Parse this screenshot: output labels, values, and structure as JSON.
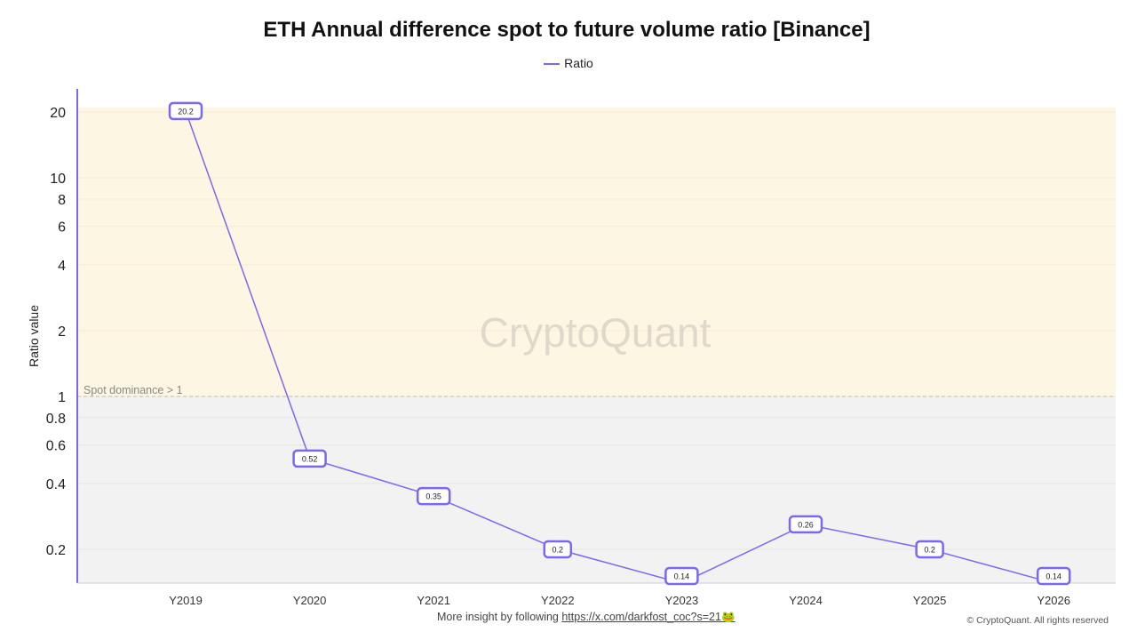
{
  "chart_data": {
    "type": "line",
    "title": "ETH Annual difference spot to future volume ratio [Binance]",
    "ylabel": "Ratio value",
    "xlabel": "",
    "yscale": "log",
    "ylim": [
      0.14,
      25.5
    ],
    "yticks": [
      0.2,
      0.4,
      0.6,
      0.8,
      1,
      2,
      4,
      6,
      8,
      10,
      20
    ],
    "categories": [
      "Y2019",
      "Y2020",
      "Y2021",
      "Y2022",
      "Y2023",
      "Y2024",
      "Y2025",
      "Y2026"
    ],
    "series": [
      {
        "name": "Ratio",
        "values": [
          20.2,
          0.52,
          0.35,
          0.2,
          0.14,
          0.26,
          0.2,
          0.14
        ],
        "labels": [
          "20.2",
          "0.52",
          "0.35",
          "0.2",
          "0.14",
          "0.26",
          "0.2",
          "0.14"
        ],
        "color": "#7b68ee"
      }
    ],
    "legend": "top-center",
    "grid": true,
    "bands": [
      {
        "from": 1,
        "to": 21,
        "color": "#fdf6e3"
      },
      {
        "from": 0.14,
        "to": 1,
        "color": "#f2f2f2"
      }
    ],
    "annotation": {
      "label": "Spot dominance > 1",
      "y": 1
    },
    "watermark": "CryptoQuant"
  },
  "footer": {
    "text": "More insight by following ",
    "link": "https://x.com/darkfost_coc?s=21🐸",
    "copyright": "© CryptoQuant. All rights reserved"
  }
}
